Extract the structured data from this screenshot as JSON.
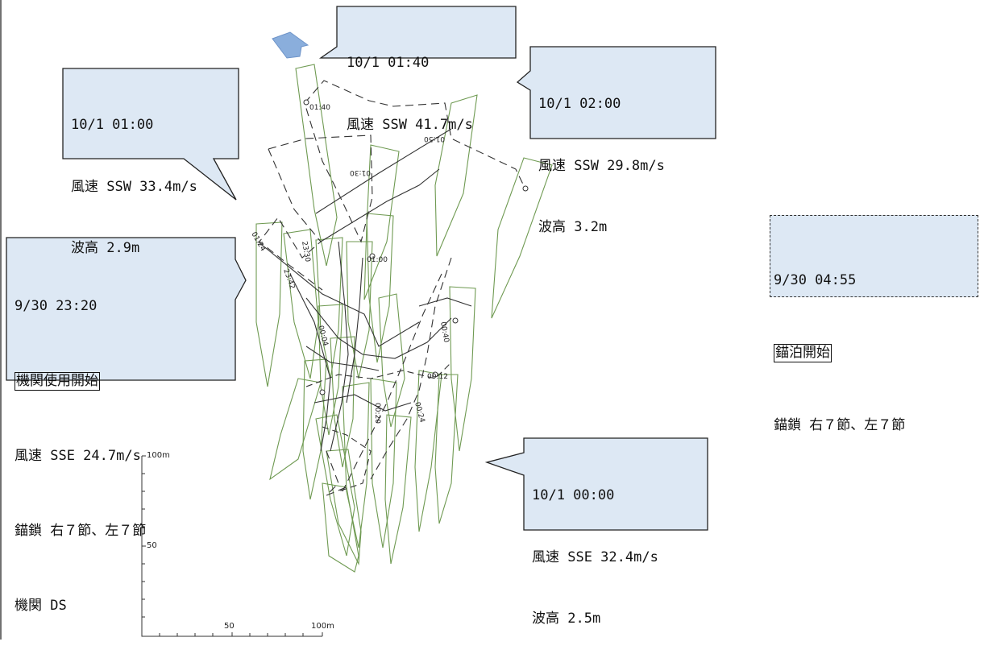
{
  "colors": {
    "callout_fill": "#dde8f4",
    "callout_stroke": "#222222",
    "hull_outline": "#6f9a52",
    "track_line": "#333333",
    "arrow_fill": "#8aaedc"
  },
  "callouts": {
    "c0140": {
      "time": "10/1 01:40",
      "wind": "風速 SSW 41.7m/s"
    },
    "c0100": {
      "time": "10/1 01:00",
      "wind": "風速 SSW 33.4m/s",
      "wave": "波高 2.9m"
    },
    "c0200": {
      "time": "10/1 02:00",
      "wind": "風速 SSW 29.8m/s",
      "wave": "波高 3.2m"
    },
    "c2320": {
      "time": "9/30 23:20",
      "event": "機関使用開始",
      "wind": "風速 SSE 24.7m/s",
      "anchor": "錨鎖 右７節、左７節",
      "engine": "機関 DS"
    },
    "c0000": {
      "time": "10/1 00:00",
      "wind": "風速 SSE 32.4m/s",
      "wave": "波高 2.5m"
    },
    "c0455": {
      "time": "9/30 04:55",
      "event": "錨泊開始",
      "anchor": "錨鎖 右７節、左７節"
    }
  },
  "track_labels": [
    "01:40",
    "01:50",
    "01:30",
    "01:24",
    "01:00",
    "23:30",
    "23:42",
    "00:04",
    "00:40",
    "00:12",
    "00:20",
    "00:24"
  ],
  "scale": {
    "y_top": "100m",
    "y_mid": "50",
    "x_mid": "50",
    "x_end": "100m"
  }
}
